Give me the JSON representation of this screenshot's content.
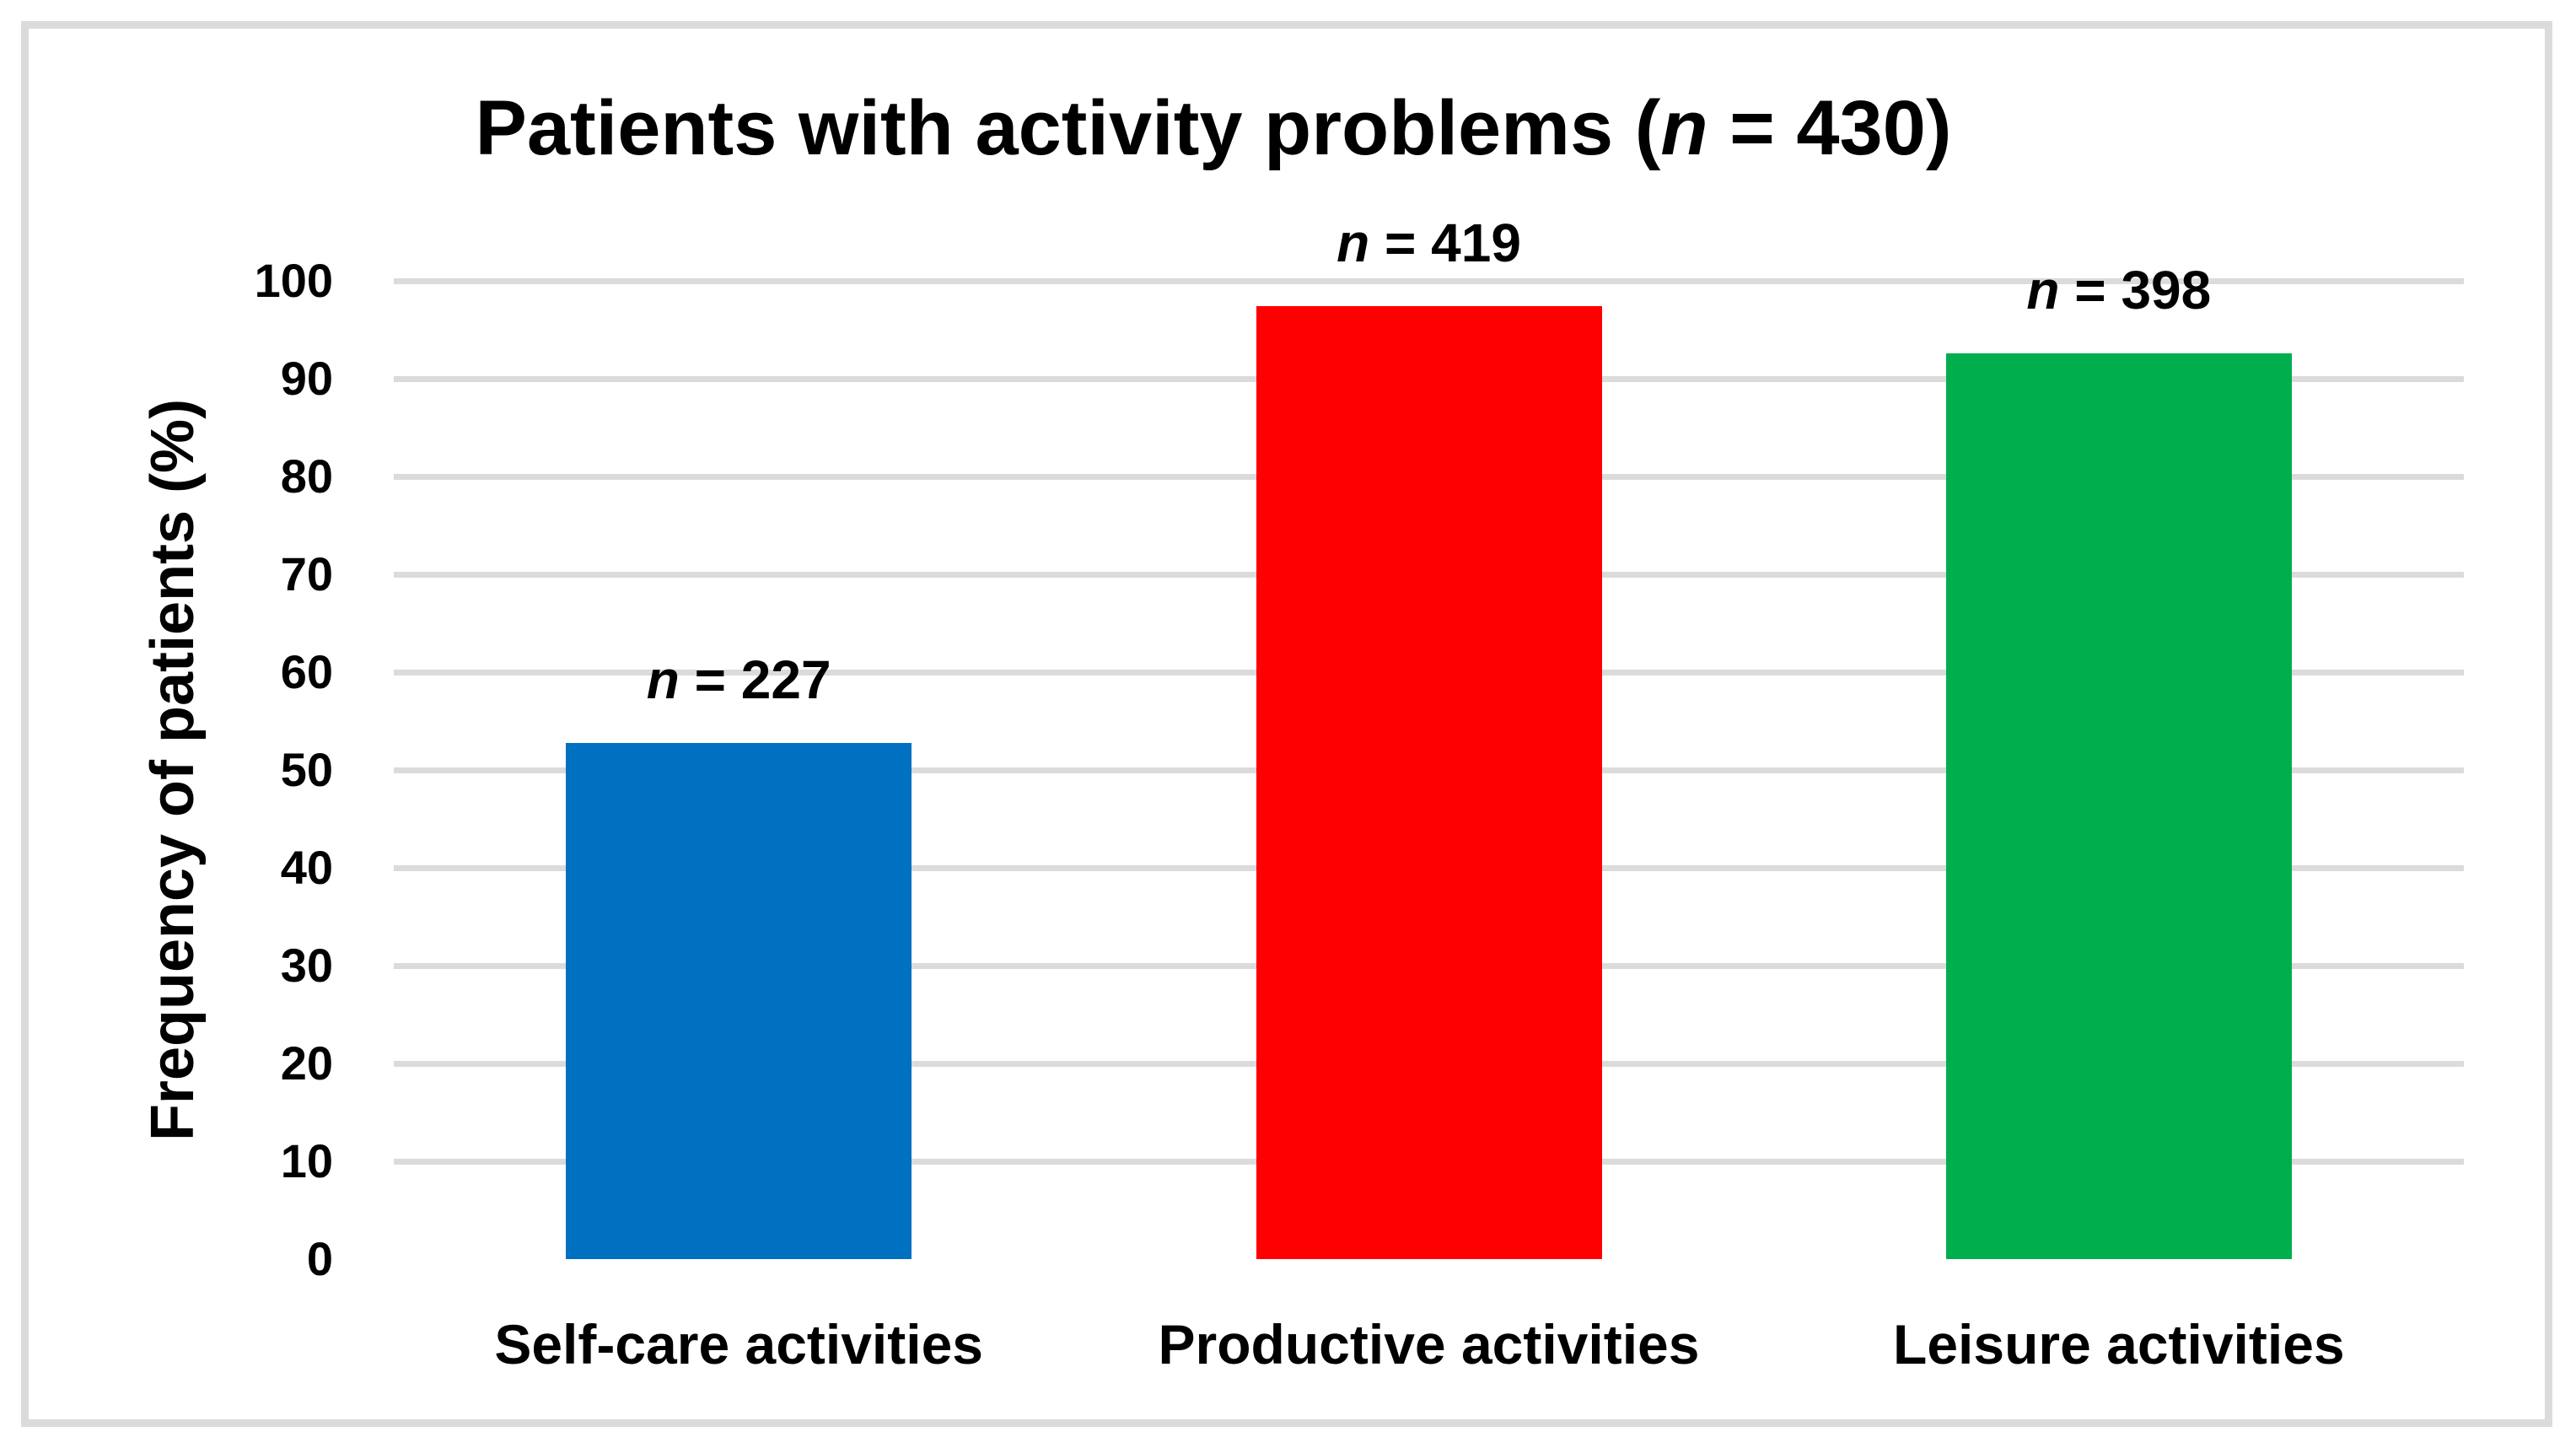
{
  "figure": {
    "background": "#FFFFFF",
    "border_color": "#DBDBDB"
  },
  "chart_data": {
    "type": "bar",
    "title": {
      "pre": "Patients with activity problems (",
      "italic": "n",
      "post": " = 430)"
    },
    "ylabel": "Frequency of patients (%)",
    "xlabel": "",
    "ylim": [
      0,
      100
    ],
    "yticks": [
      0,
      10,
      20,
      30,
      40,
      50,
      60,
      70,
      80,
      90,
      100
    ],
    "grid": "horizontal gridlines at 10..100, none at 0, color #DBDBDB",
    "legend": "none",
    "categories": [
      "Self-care activities",
      "Productive activities",
      "Leisure activities"
    ],
    "values": [
      52.8,
      97.4,
      92.6
    ],
    "bar_labels": [
      {
        "italic": "n",
        "rest": " = 227"
      },
      {
        "italic": "n",
        "rest": " = 419"
      },
      {
        "italic": "n",
        "rest": " = 398"
      }
    ],
    "bar_colors": [
      "#0070C0",
      "#FF0000",
      "#00AE4D"
    ],
    "text_color": "#000000"
  }
}
